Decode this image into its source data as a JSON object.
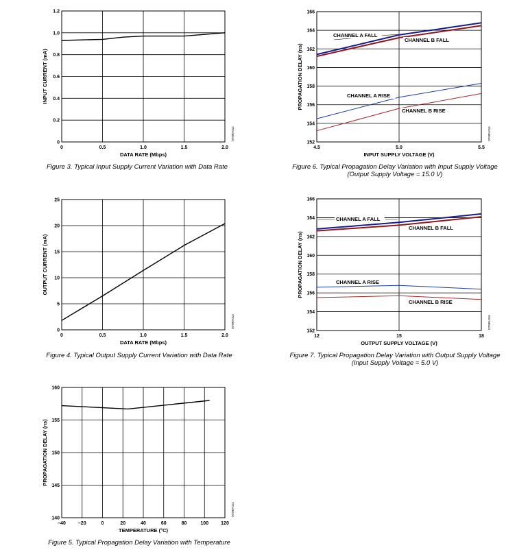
{
  "chart_data": [
    {
      "type": "line",
      "xlabel": "DATA RATE (Mbps)",
      "ylabel": "INPUT CURRENT (mA)",
      "xlim": [
        0,
        2.0
      ],
      "ylim": [
        0,
        1.2
      ],
      "x_ticks": [
        "0",
        "0.5",
        "1.0",
        "1.5",
        "2.0"
      ],
      "y_ticks": [
        "0",
        "0.2",
        "0.4",
        "0.6",
        "0.8",
        "1.0",
        "1.2"
      ],
      "figure_id": "07990-012",
      "caption": [
        "Figure 3. Typical Input Supply Current Variation with Data Rate"
      ],
      "series": [
        {
          "color": "#000000",
          "x": [
            0,
            0.5,
            0.75,
            1.0,
            1.5,
            2.0
          ],
          "y": [
            0.93,
            0.94,
            0.96,
            0.97,
            0.97,
            1.0
          ]
        }
      ]
    },
    {
      "type": "line",
      "xlabel": "DATA RATE (Mbps)",
      "ylabel": "OUTPUT CURRENT (mA)",
      "xlim": [
        0,
        2.0
      ],
      "ylim": [
        0,
        25
      ],
      "x_ticks": [
        "0",
        "0.5",
        "1.0",
        "1.5",
        "2.0"
      ],
      "y_ticks": [
        "0",
        "5",
        "10",
        "15",
        "20",
        "25"
      ],
      "figure_id": "07990-013",
      "caption": [
        "Figure 4. Typical Output Supply Current Variation with Data Rate"
      ],
      "series": [
        {
          "color": "#000000",
          "x": [
            0,
            0.5,
            1.0,
            1.5,
            2.0
          ],
          "y": [
            1.8,
            6.5,
            11.4,
            16.2,
            20.4
          ]
        }
      ]
    },
    {
      "type": "line",
      "xlabel": "TEMPERATURE (°C)",
      "ylabel": "PROPAGATION DELAY (ns)",
      "xlim": [
        -40,
        120
      ],
      "ylim": [
        140,
        160
      ],
      "x_ticks": [
        "–40",
        "–20",
        "0",
        "20",
        "40",
        "60",
        "80",
        "100",
        "120"
      ],
      "y_ticks": [
        "140",
        "145",
        "150",
        "155",
        "160"
      ],
      "figure_id": "07990-014",
      "caption": [
        "Figure 5. Typical Propagation Delay Variation with Temperature"
      ],
      "series": [
        {
          "color": "#000000",
          "x": [
            -40,
            25,
            105
          ],
          "y": [
            157.2,
            156.7,
            158
          ]
        }
      ]
    },
    {
      "type": "line",
      "xlabel": "INPUT SUPPLY VOLTAGE (V)",
      "ylabel": "PROPAGATION DELAY (ns)",
      "xlim": [
        4.5,
        5.5
      ],
      "ylim": [
        152,
        166
      ],
      "x_ticks": [
        "4.5",
        "5.0",
        "5.5"
      ],
      "y_ticks": [
        "152",
        "154",
        "156",
        "158",
        "160",
        "162",
        "164",
        "166"
      ],
      "figure_id": "07990-015",
      "caption": [
        "Figure 6. Typical Propagation Delay Variation with Input Supply Voltage",
        "(Output Supply Voltage = 15.0 V)"
      ],
      "series": [
        {
          "name": "CHANNEL A FALL",
          "color": "#1a1a8c",
          "x": [
            4.5,
            5.0,
            5.5
          ],
          "y": [
            161.4,
            163.5,
            164.8
          ]
        },
        {
          "name": "CHANNEL B FALL",
          "color": "#8c1a1a",
          "x": [
            4.5,
            5.0,
            5.5
          ],
          "y": [
            161.2,
            163.2,
            164.5
          ]
        },
        {
          "name": "CHANNEL A RISE",
          "color": "#1a3c9c",
          "x": [
            4.5,
            5.0,
            5.5
          ],
          "y": [
            154.5,
            156.8,
            158.3
          ]
        },
        {
          "name": "CHANNEL B RISE",
          "color": "#9c2a2a",
          "x": [
            4.5,
            5.0,
            5.5
          ],
          "y": [
            153.2,
            155.6,
            157.2
          ]
        }
      ]
    },
    {
      "type": "line",
      "xlabel": "OUTPUT SUPPLY VOLTAGE (V)",
      "ylabel": "PROPAGATION DELAY (ns)",
      "xlim": [
        12,
        18
      ],
      "ylim": [
        152,
        166
      ],
      "x_ticks": [
        "12",
        "15",
        "18"
      ],
      "y_ticks": [
        "152",
        "154",
        "156",
        "158",
        "160",
        "162",
        "164",
        "166"
      ],
      "figure_id": "07990-016",
      "caption": [
        "Figure 7. Typical Propagation Delay Variation with Output Supply Voltage",
        "(Input Supply Voltage = 5.0 V)"
      ],
      "series": [
        {
          "name": "CHANNEL A FALL",
          "color": "#1a1a8c",
          "x": [
            12,
            15,
            18
          ],
          "y": [
            162.8,
            163.5,
            164.4
          ]
        },
        {
          "name": "CHANNEL B FALL",
          "color": "#8c1a1a",
          "x": [
            12,
            15,
            18
          ],
          "y": [
            162.6,
            163.2,
            164.1
          ]
        },
        {
          "name": "CHANNEL A RISE",
          "color": "#1a3c9c",
          "x": [
            12,
            15,
            18
          ],
          "y": [
            156.6,
            156.8,
            156.4
          ]
        },
        {
          "name": "CHANNEL B RISE",
          "color": "#9c2a2a",
          "x": [
            12,
            15,
            18
          ],
          "y": [
            155.5,
            155.7,
            155.3
          ]
        }
      ]
    }
  ]
}
